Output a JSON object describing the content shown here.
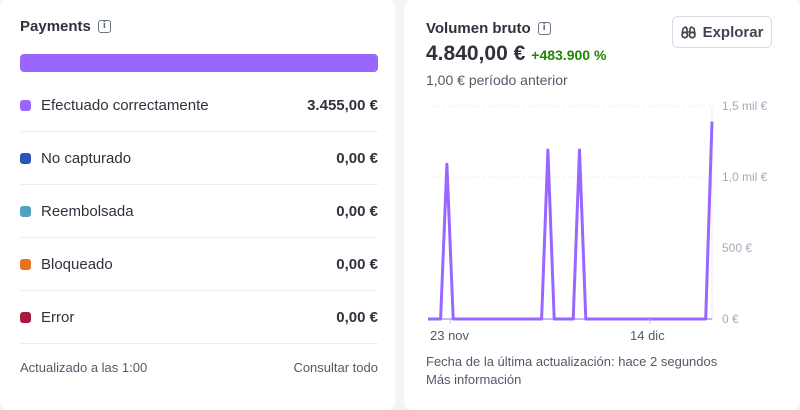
{
  "payments": {
    "title": "Payments",
    "info_icon": "info-icon",
    "rows": [
      {
        "label": "Efectuado correctamente",
        "value": "3.455,00 €",
        "color": "#9966ff"
      },
      {
        "label": "No capturado",
        "value": "0,00 €",
        "color": "#2b56b5"
      },
      {
        "label": "Reembolsada",
        "value": "0,00 €",
        "color": "#4fa3c0"
      },
      {
        "label": "Bloqueado",
        "value": "0,00 €",
        "color": "#e7711f"
      },
      {
        "label": "Error",
        "value": "0,00 €",
        "color": "#a8193f"
      }
    ],
    "updated": "Actualizado a las 1:00",
    "view_all": "Consultar todo",
    "bar_color": "#9966ff"
  },
  "volume": {
    "title": "Volumen bruto",
    "info_icon": "info-icon",
    "value": "4.840,00 €",
    "change": "+483.900 %",
    "previous": "1,00 € período anterior",
    "explore_label": "Explorar",
    "explore_icon": "binoculars-icon",
    "last_update": "Fecha de la última actualización: hace 2 segundos",
    "more_info": "Más información",
    "positive_color": "#228403"
  },
  "chart_data": {
    "type": "line",
    "x_tick_labels": [
      "23 nov",
      "14 dic"
    ],
    "y_tick_labels": [
      "1,5 mil €",
      "1,0 mil €",
      "500 €",
      "0 €"
    ],
    "y_ticks": [
      1500,
      1000,
      500,
      0
    ],
    "ylim": [
      0,
      1500
    ],
    "series": [
      {
        "color": "#9966ff",
        "values": [
          0,
          0,
          0,
          1090,
          0,
          0,
          0,
          0,
          0,
          0,
          0,
          0,
          0,
          0,
          0,
          0,
          0,
          0,
          0,
          1190,
          0,
          0,
          0,
          0,
          1190,
          0,
          0,
          0,
          0,
          0,
          0,
          0,
          0,
          0,
          0,
          0,
          0,
          0,
          0,
          0,
          0,
          0,
          0,
          0,
          0,
          1390
        ]
      },
      {
        "color": "#c9b3ff",
        "values": [
          0,
          0,
          0,
          0,
          0,
          0,
          0,
          0,
          0,
          0,
          0,
          0,
          0,
          0,
          0,
          0,
          0,
          0,
          0,
          0,
          0,
          0,
          0,
          0,
          0,
          0,
          0,
          0,
          0,
          0,
          0,
          0,
          0,
          0,
          0,
          0,
          0,
          0,
          0,
          0,
          0,
          0,
          0,
          0,
          0,
          0
        ]
      }
    ],
    "grid": "horizontal",
    "y_axis_position": "right"
  }
}
